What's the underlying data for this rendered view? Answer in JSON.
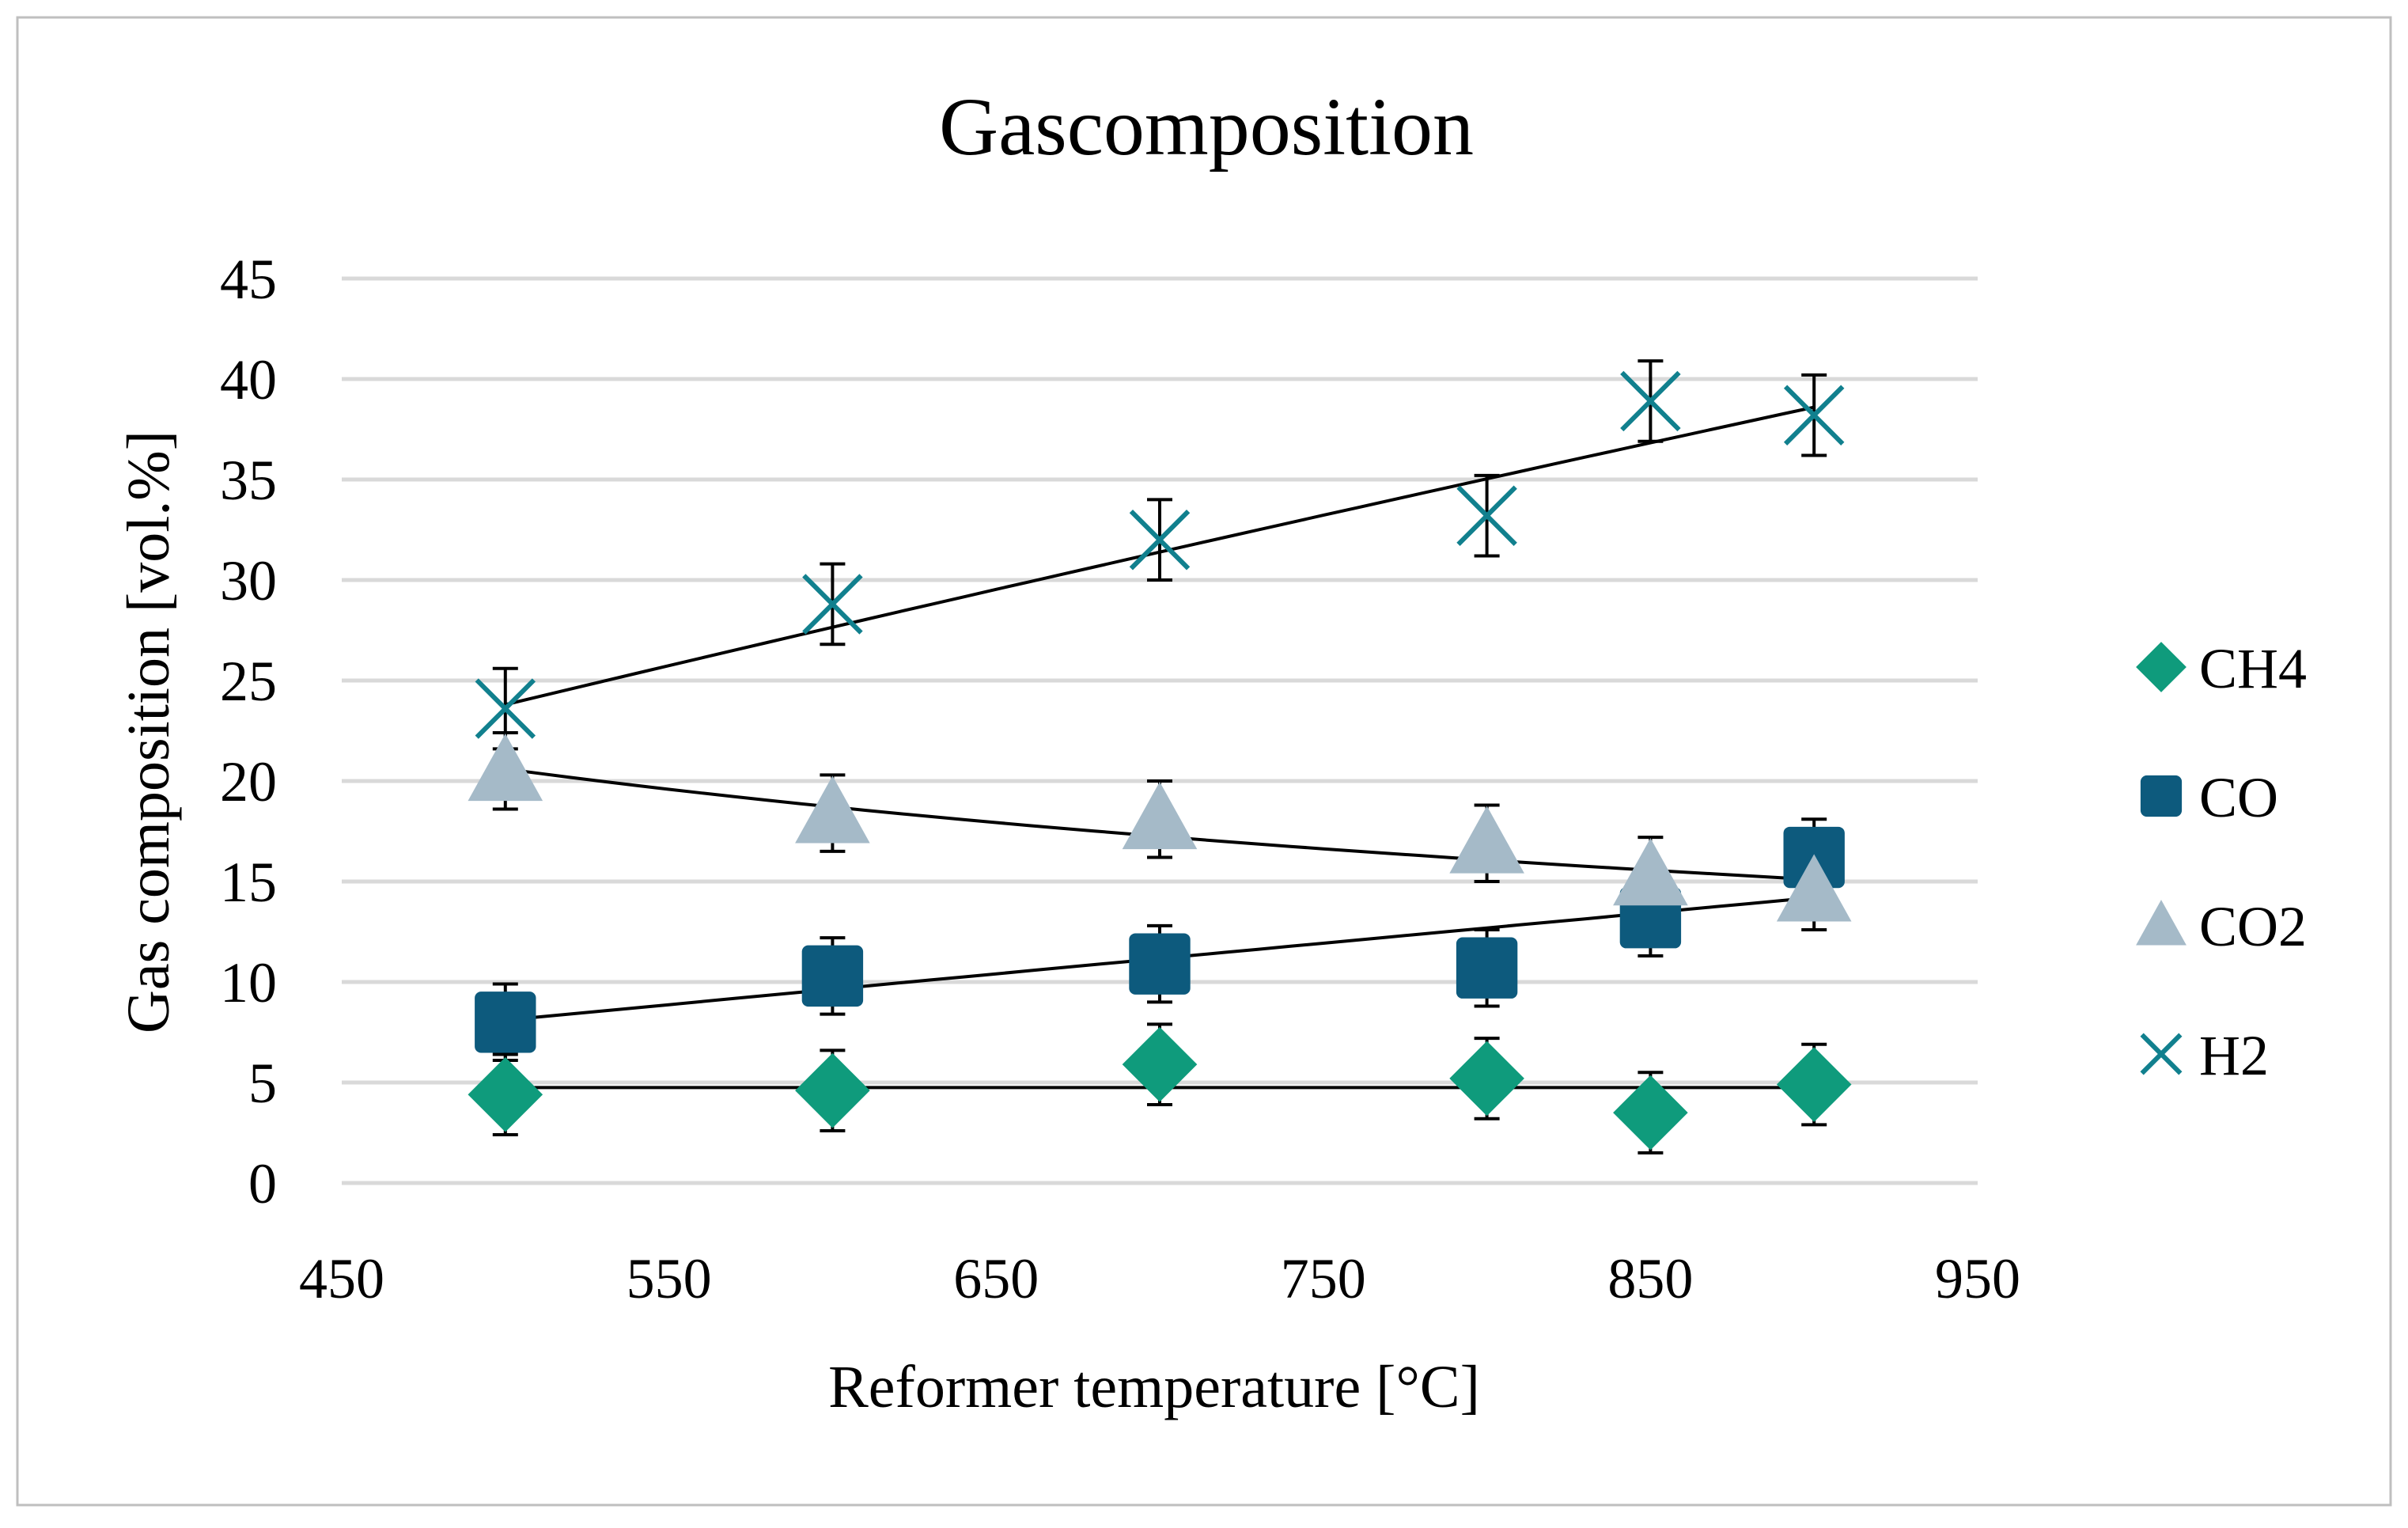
{
  "chart_data": {
    "type": "scatter",
    "title": "Gascomposition",
    "xlabel": "Reformer temperature [°C]",
    "ylabel": "Gas composition [vol.%]",
    "xlim": [
      450,
      950
    ],
    "ylim": [
      0,
      45
    ],
    "xticks": [
      450,
      550,
      650,
      750,
      850,
      950
    ],
    "yticks": [
      0,
      5,
      10,
      15,
      20,
      25,
      30,
      35,
      40,
      45
    ],
    "grid": true,
    "legend_position": "right",
    "series": [
      {
        "name": "CH4",
        "marker": "diamond",
        "color": "#0f9b7c",
        "x": [
          500,
          600,
          700,
          800,
          850,
          900
        ],
        "y": [
          4.4,
          4.6,
          5.9,
          5.2,
          3.5,
          4.9
        ],
        "error": 2.0,
        "trendline": {
          "type": "linear",
          "from": [
            500,
            4.75
          ],
          "to": [
            900,
            4.75
          ]
        }
      },
      {
        "name": "CO",
        "marker": "square",
        "color": "#0d5a7d",
        "x": [
          500,
          600,
          700,
          800,
          850,
          900
        ],
        "y": [
          8.0,
          10.3,
          10.9,
          10.7,
          13.2,
          16.2
        ],
        "error": 1.9,
        "trendline": {
          "type": "power",
          "from": [
            500,
            8.1
          ],
          "to": [
            900,
            14.2
          ]
        }
      },
      {
        "name": "CO2",
        "marker": "triangle",
        "color": "#a5bac8",
        "x": [
          500,
          600,
          700,
          800,
          850,
          900
        ],
        "y": [
          20.5,
          18.4,
          18.1,
          16.9,
          15.3,
          14.5
        ],
        "error": 1.9,
        "trendline": {
          "type": "power",
          "from": [
            500,
            20.6
          ],
          "to": [
            900,
            15.1
          ]
        }
      },
      {
        "name": "H2",
        "marker": "x",
        "color": "#11808e",
        "x": [
          500,
          600,
          700,
          800,
          850,
          900
        ],
        "y": [
          23.6,
          28.8,
          32.0,
          33.2,
          38.9,
          38.2
        ],
        "error": 2.0,
        "trendline": {
          "type": "power",
          "from": [
            500,
            23.8
          ],
          "to": [
            900,
            38.6
          ]
        }
      }
    ]
  }
}
